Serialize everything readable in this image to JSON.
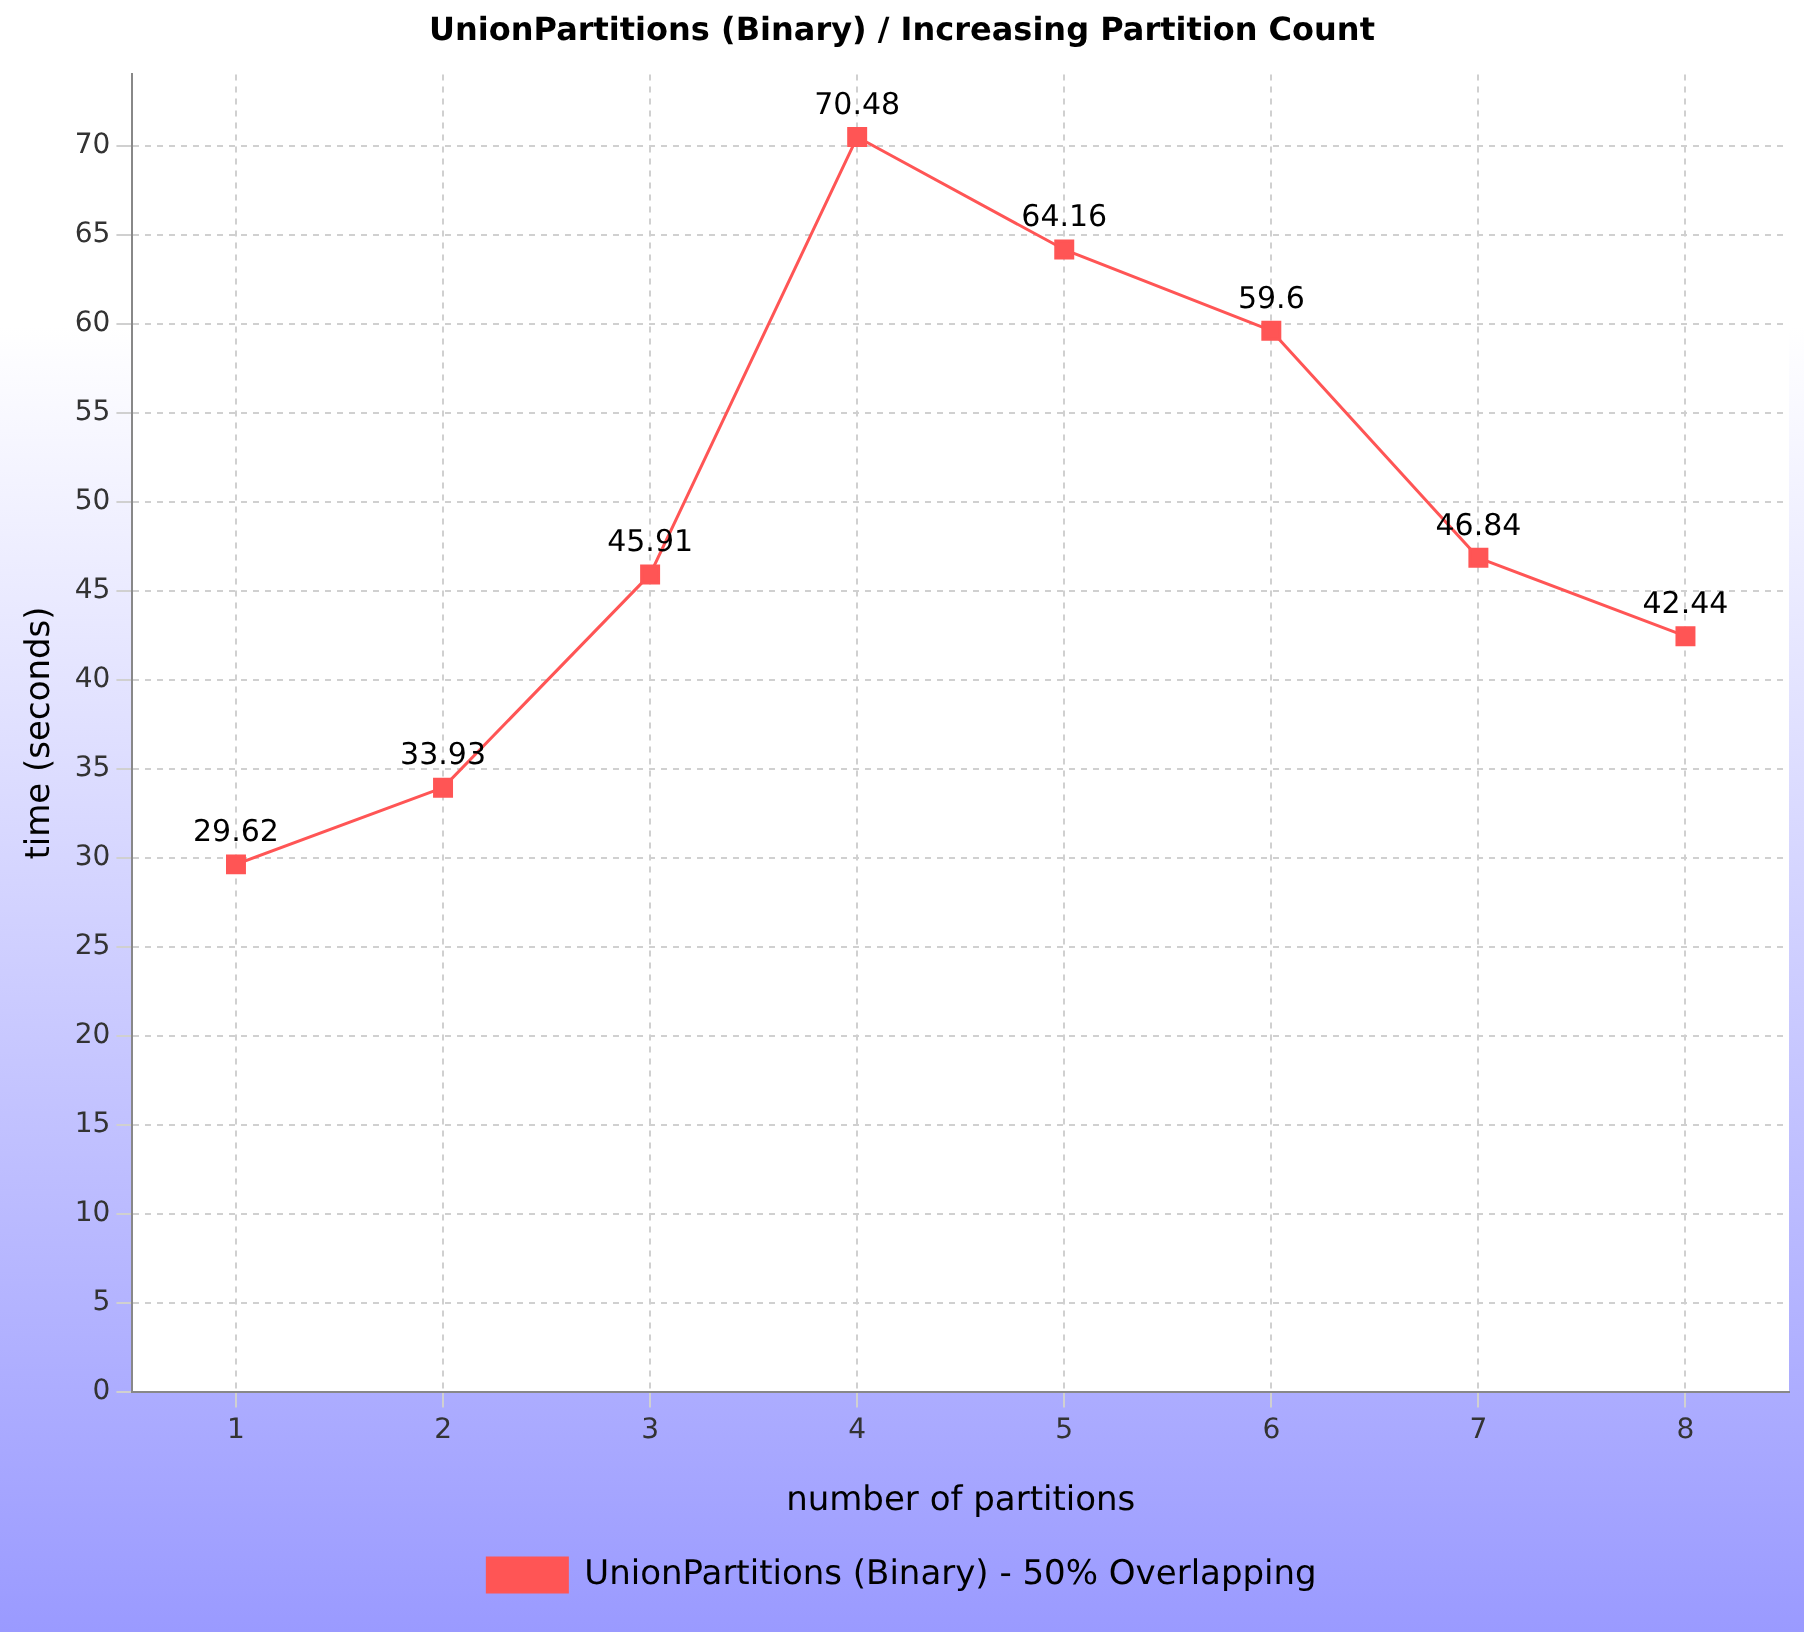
{
  "chart_data": {
    "type": "line",
    "title": "UnionPartitions (Binary) / Increasing Partition Count",
    "xlabel": "number of partitions",
    "ylabel": "time (seconds)",
    "categories": [
      "1",
      "2",
      "3",
      "4",
      "5",
      "6",
      "7",
      "8"
    ],
    "series": [
      {
        "name": "UnionPartitions (Binary) - 50% Overlapping",
        "color": "#ff5555",
        "values": [
          29.62,
          33.93,
          45.91,
          70.48,
          64.16,
          59.6,
          46.84,
          42.44
        ]
      }
    ],
    "ylim": [
      0,
      74
    ],
    "yticks": [
      0,
      5,
      10,
      15,
      20,
      25,
      30,
      35,
      40,
      45,
      50,
      55,
      60,
      65,
      70
    ],
    "grid": true,
    "legend": "bottom",
    "marker": "square",
    "line_style": "solid",
    "data_labels": true
  }
}
